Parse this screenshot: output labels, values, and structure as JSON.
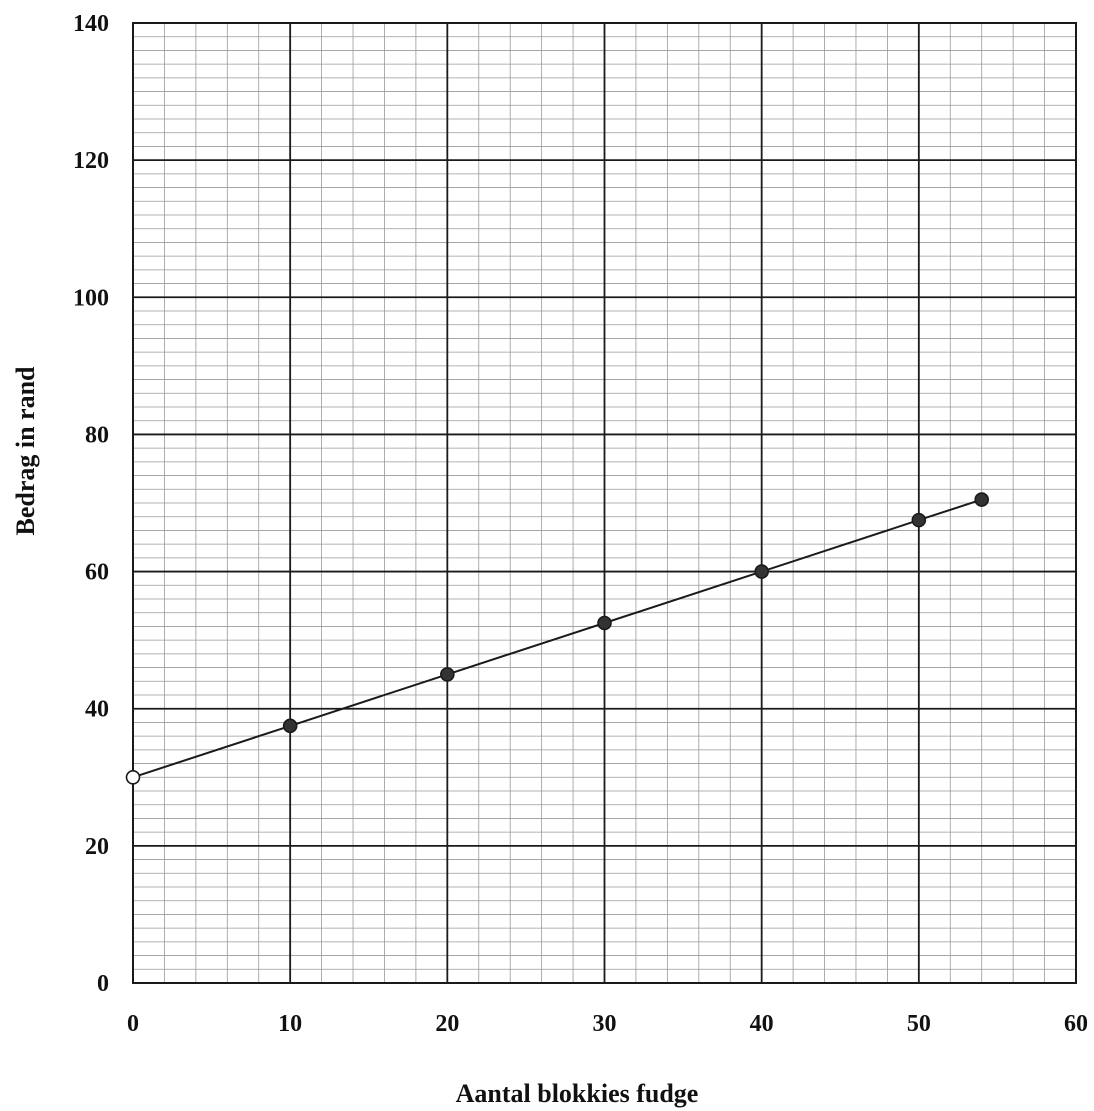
{
  "chart_data": {
    "type": "line",
    "title": "",
    "xlabel": "Aantal blokkies fudge",
    "ylabel": "Bedrag in rand",
    "xlim": [
      0,
      60
    ],
    "ylim": [
      0,
      140
    ],
    "x_ticks": [
      0,
      10,
      20,
      30,
      40,
      50,
      60
    ],
    "y_ticks": [
      0,
      20,
      40,
      60,
      80,
      100,
      120,
      140
    ],
    "x_tick_labels": [
      "0",
      "10",
      "20",
      "30",
      "40",
      "50",
      "60"
    ],
    "y_tick_labels": [
      "0",
      "20",
      "40",
      "60",
      "80",
      "100",
      "120",
      "140"
    ],
    "grid": true,
    "minor_grid_step": 2,
    "legend": "none",
    "series": [
      {
        "x": [
          0,
          10,
          20,
          30,
          40,
          50,
          54
        ],
        "y": [
          30,
          37.5,
          45,
          52.5,
          60,
          67.5,
          70.5
        ],
        "marker_filled": [
          false,
          true,
          true,
          true,
          true,
          true,
          true
        ]
      }
    ],
    "colors": {
      "line": "#1a1a1a",
      "marker_fill": "#333333",
      "open_marker_fill": "#ffffff"
    }
  }
}
